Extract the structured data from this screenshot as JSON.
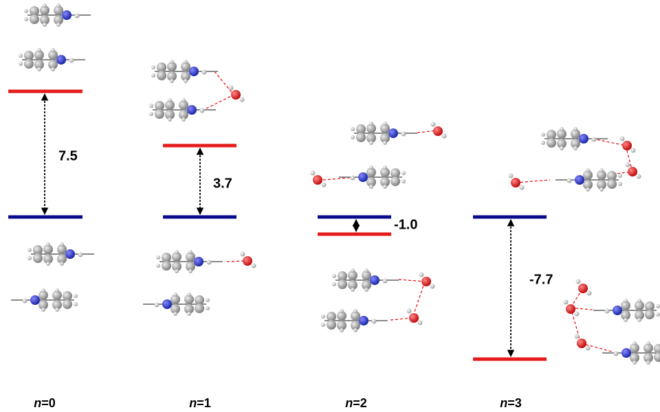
{
  "panels": [
    {
      "label": "n=0",
      "energy_difference": "7.5"
    },
    {
      "label": "n=1",
      "energy_difference": "3.7"
    },
    {
      "label": "n=2",
      "energy_difference": "-1.0"
    },
    {
      "label": "n=3",
      "energy_difference": "-7.7"
    }
  ]
}
